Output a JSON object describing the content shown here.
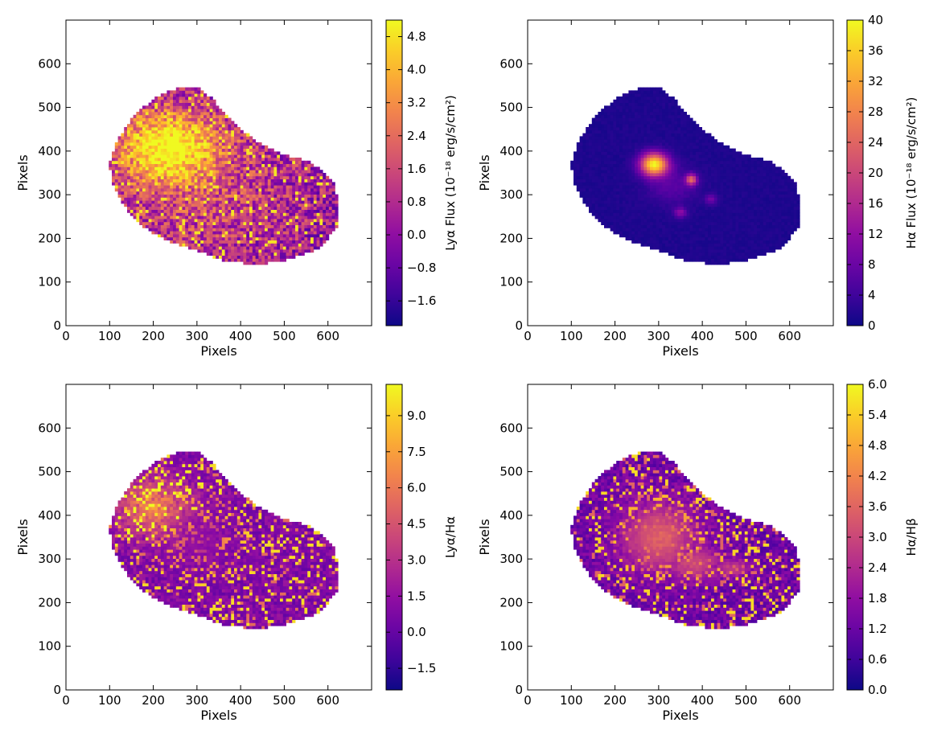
{
  "figure": {
    "layout": "2x2 grid of image maps with colorbars"
  },
  "chart_data": [
    {
      "type": "heatmap",
      "panel": "top-left",
      "xlabel": "Pixels",
      "ylabel": "Pixels",
      "xlim": [
        0,
        700
      ],
      "ylim": [
        0,
        700
      ],
      "xticks": [
        "0",
        "100",
        "200",
        "300",
        "400",
        "500",
        "600"
      ],
      "yticks": [
        "0",
        "100",
        "200",
        "300",
        "400",
        "500",
        "600"
      ],
      "colormap": "plasma",
      "grid": false,
      "colorbar": {
        "label": "Lyα Flux (10⁻¹⁸ erg/s/cm²)",
        "range": [
          -2.2,
          5.2
        ],
        "ticks": [
          "−1.6",
          "−0.8",
          "0.0",
          "0.8",
          "1.6",
          "2.4",
          "3.2",
          "4.0",
          "4.8"
        ]
      }
    },
    {
      "type": "heatmap",
      "panel": "top-right",
      "xlabel": "Pixels",
      "ylabel": "Pixels",
      "xlim": [
        0,
        700
      ],
      "ylim": [
        0,
        700
      ],
      "xticks": [
        "0",
        "100",
        "200",
        "300",
        "400",
        "500",
        "600"
      ],
      "yticks": [
        "0",
        "100",
        "200",
        "300",
        "400",
        "500",
        "600"
      ],
      "colormap": "plasma",
      "grid": false,
      "colorbar": {
        "label": "Hα Flux (10⁻¹⁸ erg/s/cm²)",
        "range": [
          0,
          40
        ],
        "ticks": [
          "0",
          "4",
          "8",
          "12",
          "16",
          "20",
          "24",
          "28",
          "32",
          "36",
          "40"
        ]
      }
    },
    {
      "type": "heatmap",
      "panel": "bottom-left",
      "xlabel": "Pixels",
      "ylabel": "Pixels",
      "xlim": [
        0,
        700
      ],
      "ylim": [
        0,
        700
      ],
      "xticks": [
        "0",
        "100",
        "200",
        "300",
        "400",
        "500",
        "600"
      ],
      "yticks": [
        "0",
        "100",
        "200",
        "300",
        "400",
        "500",
        "600"
      ],
      "colormap": "plasma",
      "grid": false,
      "colorbar": {
        "label": "Lyα/Hα",
        "range": [
          -2.4,
          10.3
        ],
        "ticks": [
          "−1.5",
          "0.0",
          "1.5",
          "3.0",
          "4.5",
          "6.0",
          "7.5",
          "9.0"
        ]
      }
    },
    {
      "type": "heatmap",
      "panel": "bottom-right",
      "xlabel": "Pixels",
      "ylabel": "Pixels",
      "xlim": [
        0,
        700
      ],
      "ylim": [
        0,
        700
      ],
      "xticks": [
        "0",
        "100",
        "200",
        "300",
        "400",
        "500",
        "600"
      ],
      "yticks": [
        "0",
        "100",
        "200",
        "300",
        "400",
        "500",
        "600"
      ],
      "colormap": "plasma",
      "grid": false,
      "colorbar": {
        "label": "Hα/Hβ",
        "range": [
          0,
          6
        ],
        "ticks": [
          "0.0",
          "0.6",
          "1.2",
          "1.8",
          "2.4",
          "3.0",
          "3.6",
          "4.2",
          "4.8",
          "5.4",
          "6.0"
        ]
      }
    }
  ]
}
